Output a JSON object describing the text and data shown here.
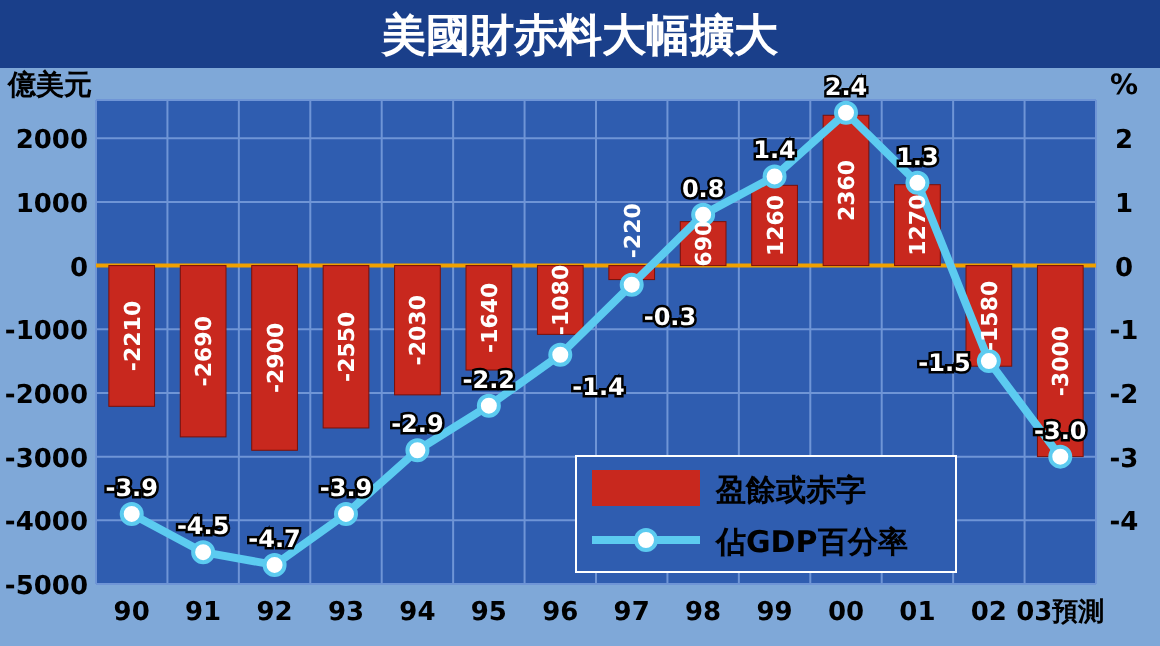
{
  "chart_data": {
    "type": "bar",
    "title": "美國財赤料大幅擴大",
    "ylabel": "億美元",
    "y2label": "%",
    "categories": [
      "90",
      "91",
      "92",
      "93",
      "94",
      "95",
      "96",
      "97",
      "98",
      "99",
      "00",
      "01",
      "02",
      "03預測"
    ],
    "series": [
      {
        "name": "盈餘或赤字",
        "type": "bar",
        "color": "#c8281e",
        "values": [
          -2210,
          -2690,
          -2900,
          -2550,
          -2030,
          -1640,
          -1080,
          -220,
          690,
          1260,
          2360,
          1270,
          -1580,
          -3000
        ]
      },
      {
        "name": "佔GDP百分率",
        "type": "line",
        "axis": "y2",
        "color": "#5ccbf0",
        "marker": "circle",
        "values": [
          -3.9,
          -4.5,
          -4.7,
          -3.9,
          -2.9,
          -2.2,
          -1.4,
          -0.3,
          0.8,
          1.4,
          2.4,
          1.3,
          -1.5,
          -3.0
        ],
        "value_labels": [
          "-3.9",
          "-4.5",
          "-4.7",
          "-3.9",
          "-2.9",
          "-2.2",
          "-1.4",
          "-0.3",
          "0.8",
          "1.4",
          "2.4",
          "1.3",
          "-1.5",
          "-3.0"
        ]
      }
    ],
    "ylim": [
      -5000,
      2600
    ],
    "yticks": [
      -5000,
      -4000,
      -3000,
      -2000,
      -1000,
      0,
      1000,
      2000,
      {
        "value": 2600,
        "label": null
      }
    ],
    "y2lim": [
      -5,
      2.6
    ],
    "y2ticks": [
      -4,
      -3,
      -2,
      -1,
      0,
      1,
      2
    ],
    "grid": true,
    "legend": "bottom right",
    "data_labels": true,
    "ref_lines": [
      {
        "axis": "y",
        "value": 0,
        "color": "#f0a000"
      }
    ]
  }
}
